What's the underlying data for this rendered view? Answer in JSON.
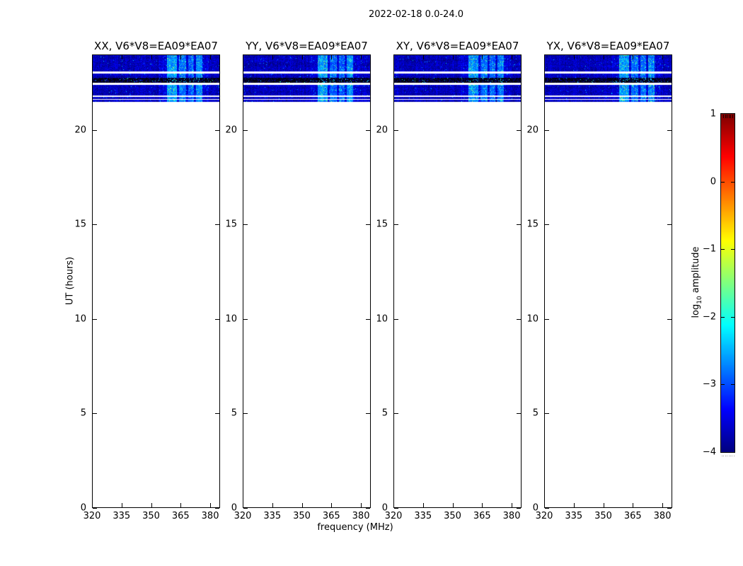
{
  "figure": {
    "background": "#ffffff",
    "frame_color": "#000000",
    "text_color": "#000000"
  },
  "chart_data": {
    "type": "heatmap",
    "title": "2022-02-18 0.0-24.0",
    "xlabel": "frequency (MHz)",
    "ylabel": "UT (hours)",
    "xlim": [
      320,
      385
    ],
    "x_ticks": [
      320,
      335,
      350,
      365,
      380
    ],
    "ylim": [
      0,
      24
    ],
    "y_ticks": [
      0,
      5,
      10,
      15,
      20
    ],
    "grid": false,
    "colormap": "jet",
    "legend": "none",
    "panels": [
      {
        "label": "XX, V6*V8=EA09*EA07",
        "stripe_gain": 1.0
      },
      {
        "label": "YY, V6*V8=EA09*EA07",
        "stripe_gain": 1.0
      },
      {
        "label": "XY, V6*V8=EA09*EA07",
        "stripe_gain": 0.95
      },
      {
        "label": "YX, V6*V8=EA09*EA07",
        "stripe_gain": 1.0
      }
    ],
    "colorbar": {
      "label": "log10 amplitude",
      "label_parts": {
        "base": "log",
        "sub": "10",
        "rest": " amplitude"
      },
      "range": [
        -4,
        1
      ],
      "ticks": [
        1,
        0,
        -1,
        -2,
        -3,
        -4
      ],
      "position": "right"
    },
    "observed_band": {
      "ut_range": [
        21.51,
        24.0
      ],
      "base_log10_amplitude": -3.72,
      "noise_spread": 0.55,
      "segments": [
        {
          "ut": [
            23.1,
            24.0
          ],
          "type": "noise"
        },
        {
          "ut": [
            22.99,
            23.1
          ],
          "type": "gap"
        },
        {
          "ut": [
            22.76,
            22.99
          ],
          "type": "noise"
        },
        {
          "ut": [
            22.5,
            22.76
          ],
          "type": "flagged_black"
        },
        {
          "ut": [
            22.39,
            22.5
          ],
          "type": "gap"
        },
        {
          "ut": [
            21.83,
            22.39
          ],
          "type": "noise"
        },
        {
          "ut": [
            21.75,
            21.83
          ],
          "type": "gap"
        },
        {
          "ut": [
            21.64,
            21.75
          ],
          "type": "noise"
        },
        {
          "ut": [
            21.59,
            21.64
          ],
          "type": "gap"
        },
        {
          "ut": [
            21.51,
            21.59
          ],
          "type": "noise"
        }
      ],
      "rfi_stripes_mhz": [
        {
          "range": [
            358,
            363
          ],
          "boost": 0.9
        },
        {
          "range": [
            364,
            367.5
          ],
          "boost": 0.7
        },
        {
          "range": [
            368.5,
            371.5
          ],
          "boost": 0.65
        },
        {
          "range": [
            372.5,
            376
          ],
          "boost": 0.8
        },
        {
          "range": [
            354,
            379
          ],
          "boost": 0.15
        }
      ]
    }
  }
}
